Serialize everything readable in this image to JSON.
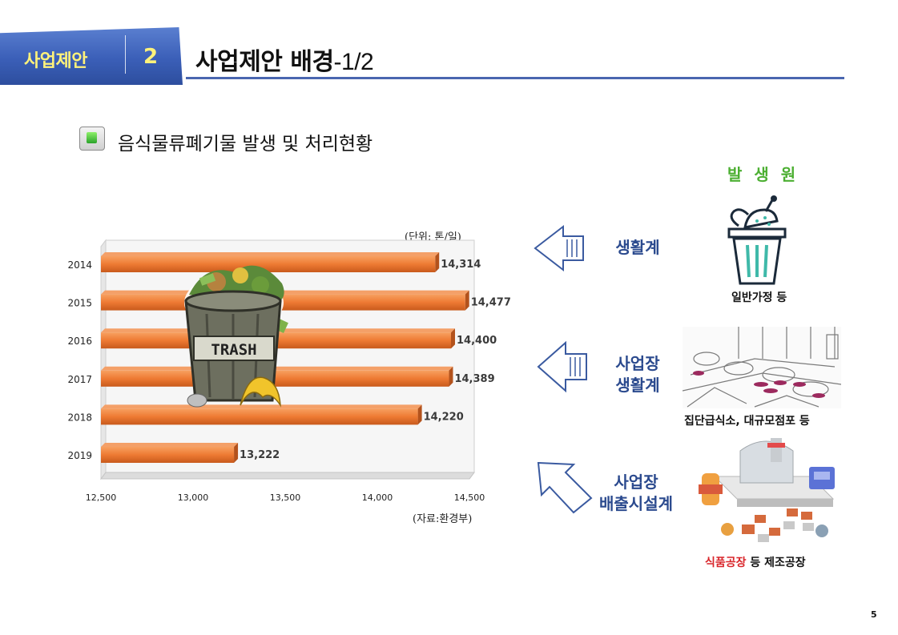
{
  "header": {
    "tab_label": "사업제안",
    "tab_number": "2",
    "title_main": "사업제안 배경",
    "title_sub": "-1/2"
  },
  "section": {
    "title": "음식물류폐기물 발생 및 처리현황"
  },
  "chart_data": {
    "type": "bar",
    "orientation": "horizontal",
    "categories": [
      "2014",
      "2015",
      "2016",
      "2017",
      "2018",
      "2019"
    ],
    "values": [
      14314,
      14477,
      14400,
      14389,
      14220,
      13222
    ],
    "value_labels": [
      "14,314",
      "14,477",
      "14,400",
      "14,389",
      "14,220",
      "13,222"
    ],
    "xlim": [
      12500,
      14500
    ],
    "x_ticks": [
      12500,
      13000,
      13500,
      14000,
      14500
    ],
    "x_tick_labels": [
      "12,500",
      "13,000",
      "13,500",
      "14,000",
      "14,500"
    ],
    "unit_label": "(단위: 톤/일)",
    "source_label": "(자료:환경부)",
    "bar_color": "#ee7a33",
    "grid": false,
    "legend": "none",
    "illustration": "trash-can-icon",
    "illustration_text": "TRASH"
  },
  "origins": {
    "title": "발 생 원",
    "items": [
      {
        "category": "생활계",
        "caption": "일반가정 등",
        "icon": "food-bin-icon"
      },
      {
        "category": [
          "사업장",
          "생활계"
        ],
        "caption": "집단급식소, 대규모점포 등",
        "icon": "cafeteria-icon"
      },
      {
        "category": [
          "사업장",
          "배출시설계"
        ],
        "caption_red": "식품공장",
        "caption_rest": " 등 제조공장",
        "icon": "factory-icon"
      }
    ]
  },
  "colors": {
    "accent_blue": "#3b5fb8",
    "title_green": "#4caf32",
    "category_blue": "#2b4a8e",
    "caption_red": "#d9262b"
  },
  "page_number": "5"
}
